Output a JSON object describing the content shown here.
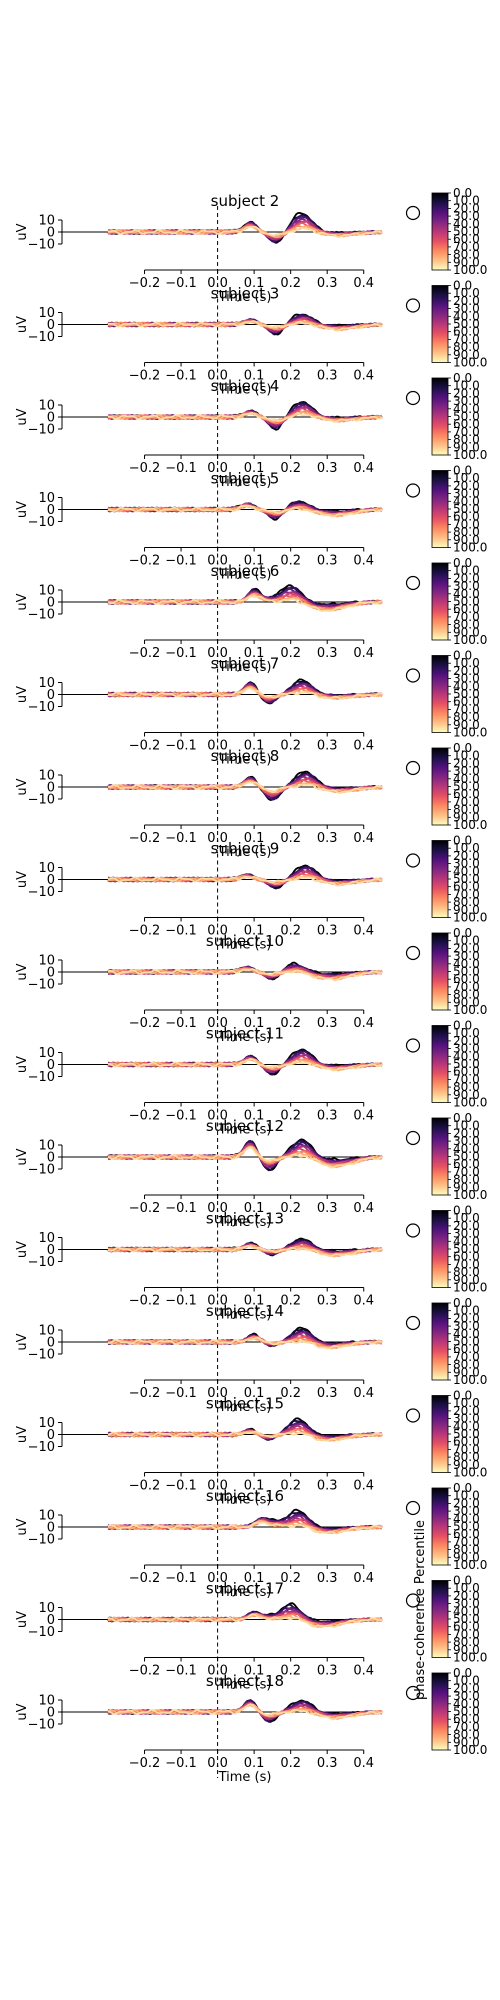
{
  "figure": {
    "xlabel": "Time (s)",
    "ylabel": "uV",
    "colorbar_label": "phase-coherence Percentile",
    "colorbar_ticks": [
      "0.0",
      "10.0",
      "20.0",
      "30.0",
      "40.0",
      "50.0",
      "60.0",
      "70.0",
      "80.0",
      "90.0",
      "100.0"
    ],
    "x_ticks": [
      "−0.2",
      "−0.1",
      "0.0",
      "0.1",
      "0.2",
      "0.3",
      "0.4"
    ],
    "y_ticks": [
      "10",
      "0",
      "−10"
    ]
  },
  "chart_data": {
    "type": "line",
    "xlabel": "Time (s)",
    "ylabel": "uV",
    "xlim": [
      -0.3,
      0.45
    ],
    "ylim": [
      -15,
      15
    ],
    "x_ticks": [
      -0.2,
      -0.1,
      0.0,
      0.1,
      0.2,
      0.3,
      0.4
    ],
    "y_ticks": [
      10,
      0,
      -10
    ],
    "stimulus_onset_line": 0.0,
    "colormap": "magma",
    "colorbar": {
      "label": "phase-coherence Percentile",
      "range": [
        0,
        100
      ],
      "ticks": [
        0,
        10,
        20,
        30,
        40,
        50,
        60,
        70,
        80,
        90,
        100
      ]
    },
    "percentiles": [
      0,
      10,
      20,
      30,
      40,
      50,
      60,
      70,
      80,
      90,
      100
    ],
    "panels": [
      {
        "title": "subject 2",
        "early_peak": [
          0.09,
          8
        ],
        "trough": [
          0.16,
          -9
        ],
        "main_peak": [
          0.23,
          16
        ],
        "late": [
          0.33,
          -3
        ]
      },
      {
        "title": "subject 3",
        "early_peak": [
          0.09,
          4
        ],
        "trough": [
          0.16,
          -8
        ],
        "main_peak": [
          0.23,
          9
        ],
        "late": [
          0.33,
          -4
        ]
      },
      {
        "title": "subject 4",
        "early_peak": [
          0.09,
          5
        ],
        "trough": [
          0.16,
          -10
        ],
        "main_peak": [
          0.23,
          13
        ],
        "late": [
          0.33,
          -3
        ]
      },
      {
        "title": "subject 5",
        "early_peak": [
          0.08,
          5
        ],
        "trough": [
          0.16,
          -8
        ],
        "main_peak": [
          0.22,
          7
        ],
        "late": [
          0.32,
          -5
        ]
      },
      {
        "title": "subject 6",
        "early_peak": [
          0.1,
          10
        ],
        "trough": [
          0.14,
          2
        ],
        "main_peak": [
          0.2,
          14
        ],
        "late": [
          0.3,
          -7
        ]
      },
      {
        "title": "subject 7",
        "early_peak": [
          0.09,
          10
        ],
        "trough": [
          0.14,
          -7
        ],
        "main_peak": [
          0.23,
          12
        ],
        "late": [
          0.32,
          -3
        ]
      },
      {
        "title": "subject 8",
        "early_peak": [
          0.09,
          8
        ],
        "trough": [
          0.15,
          -11
        ],
        "main_peak": [
          0.24,
          13
        ],
        "late": [
          0.33,
          -4
        ]
      },
      {
        "title": "subject 9",
        "early_peak": [
          0.08,
          4
        ],
        "trough": [
          0.16,
          -7
        ],
        "main_peak": [
          0.24,
          12
        ],
        "late": [
          0.33,
          -4
        ]
      },
      {
        "title": "subject 10",
        "early_peak": [
          0.08,
          4
        ],
        "trough": [
          0.15,
          -6
        ],
        "main_peak": [
          0.21,
          7
        ],
        "late": [
          0.31,
          -6
        ]
      },
      {
        "title": "subject 11",
        "early_peak": [
          0.09,
          7
        ],
        "trough": [
          0.15,
          -8
        ],
        "main_peak": [
          0.23,
          13
        ],
        "late": [
          0.32,
          -4
        ]
      },
      {
        "title": "subject 12",
        "early_peak": [
          0.09,
          14
        ],
        "trough": [
          0.14,
          -11
        ],
        "main_peak": [
          0.23,
          15
        ],
        "late": [
          0.32,
          -8
        ]
      },
      {
        "title": "subject 13",
        "early_peak": [
          0.09,
          5
        ],
        "trough": [
          0.15,
          -4
        ],
        "main_peak": [
          0.23,
          9
        ],
        "late": [
          0.32,
          -5
        ]
      },
      {
        "title": "subject 14",
        "early_peak": [
          0.1,
          6
        ],
        "trough": [
          0.15,
          -3
        ],
        "main_peak": [
          0.23,
          12
        ],
        "late": [
          0.3,
          -5
        ]
      },
      {
        "title": "subject 15",
        "early_peak": [
          0.09,
          4
        ],
        "trough": [
          0.14,
          -4
        ],
        "main_peak": [
          0.22,
          13
        ],
        "late": [
          0.3,
          -5
        ]
      },
      {
        "title": "subject 16",
        "early_peak": [
          0.12,
          7
        ],
        "trough": [
          0.16,
          4
        ],
        "main_peak": [
          0.22,
          14
        ],
        "late": [
          0.3,
          -5
        ]
      },
      {
        "title": "subject 17",
        "early_peak": [
          0.1,
          6
        ],
        "trough": [
          0.14,
          2
        ],
        "main_peak": [
          0.2,
          13
        ],
        "late": [
          0.29,
          -6
        ]
      },
      {
        "title": "subject 18",
        "early_peak": [
          0.09,
          10
        ],
        "trough": [
          0.14,
          -8
        ],
        "main_peak": [
          0.23,
          10
        ],
        "late": [
          0.32,
          -5
        ]
      }
    ]
  }
}
